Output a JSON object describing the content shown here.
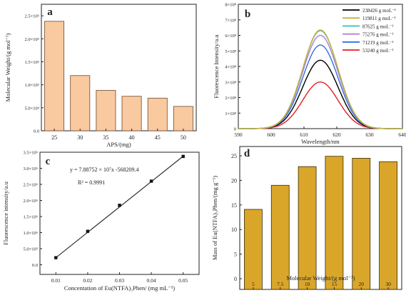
{
  "colors": {
    "bar_a": "#f9c9a0",
    "bar_d": "#d9a62a",
    "axis": "#222222",
    "fit_line": "#333333",
    "points": "#111111"
  },
  "chart_data": [
    {
      "panel": "a",
      "type": "bar",
      "label": "a",
      "categories": [
        "25",
        "30",
        "35",
        "40",
        "45",
        "50"
      ],
      "values": [
        238000,
        120000,
        88000,
        75000,
        71000,
        53000
      ],
      "ylim": [
        0,
        275000
      ],
      "yticks": [
        0,
        50000,
        100000,
        150000,
        200000,
        250000
      ],
      "ytick_labels": [
        "0.0",
        "5.0×10⁴",
        "1.0×10⁵",
        "1.5×10⁵",
        "2.0×10⁵",
        "2.5×10⁵"
      ],
      "xlabel": "APS/(mg)",
      "ylabel": "Molecular Weight/(g mol⁻¹)"
    },
    {
      "panel": "b",
      "type": "line",
      "label": "b",
      "xlim": [
        590,
        640
      ],
      "xticks": [
        590,
        600,
        610,
        620,
        630,
        640
      ],
      "ylim": [
        0,
        800000000
      ],
      "yticks": [
        0,
        100000000,
        200000000,
        300000000,
        400000000,
        500000000,
        600000000,
        700000000,
        800000000
      ],
      "ytick_labels": [
        "0",
        "1×10⁸",
        "2×10⁸",
        "3×10⁸",
        "4×10⁸",
        "5×10⁸",
        "6×10⁸",
        "7×10⁸",
        "8×10⁸"
      ],
      "xlabel": "Wavelength/nm",
      "ylabel": "Fluorescence Intensity/a.u",
      "legend_position": "top-right",
      "peak_wavelength": 615,
      "series": [
        {
          "name": "238426 g moL⁻¹",
          "peak": 440000000,
          "color": "#000000"
        },
        {
          "name": "119811 g moL⁻¹",
          "peak": 635000000,
          "color": "#c8b43a"
        },
        {
          "name": "87625 g moL⁻¹",
          "peak": 630000000,
          "color": "#2ec4c4"
        },
        {
          "name": "75276 g moL⁻¹",
          "peak": 600000000,
          "color": "#b07ad0"
        },
        {
          "name": "71219 g moL⁻¹",
          "peak": 538000000,
          "color": "#2f6fe0"
        },
        {
          "name": "53240 g moL⁻¹",
          "peak": 300000000,
          "color": "#e02020"
        }
      ]
    },
    {
      "panel": "c",
      "type": "scatter",
      "label": "c",
      "x": [
        0.01,
        0.02,
        0.03,
        0.04,
        0.05
      ],
      "y": [
        220000,
        1040000,
        1850000,
        2600000,
        3370000
      ],
      "fit": {
        "slope": 78875200,
        "intercept": -568209.4
      },
      "equation": "y = 7.88752 × 10⁷x -568209.4",
      "r2": "R² = 0.9991",
      "xlim": [
        0.005,
        0.055
      ],
      "xticks": [
        0.01,
        0.02,
        0.03,
        0.04,
        0.05
      ],
      "xtick_labels": [
        "0.01",
        "0.02",
        "0.03",
        "0.04",
        "0.05"
      ],
      "ylim": [
        -300000,
        3500000
      ],
      "yticks": [
        0,
        500000,
        1000000,
        1500000,
        2000000,
        2500000,
        3000000,
        3500000
      ],
      "ytick_labels": [
        "0.0",
        "5.0×10⁵",
        "1.0×10⁶",
        "1.5×10⁶",
        "2.0×10⁶",
        "2.5×10⁶",
        "3.0×10⁶",
        "3.5×10⁶"
      ],
      "xlabel": "Concentation of Eu(NTFA)₃Phen/ (mg mL⁻¹)",
      "ylabel": "Fluorescence intensity/a.u"
    },
    {
      "panel": "d",
      "type": "bar",
      "label": "d",
      "categories": [
        "5",
        "7.5",
        "10",
        "15",
        "20",
        "30"
      ],
      "values": [
        14.1,
        19.0,
        22.8,
        24.9,
        24.5,
        23.8
      ],
      "ylim": [
        0,
        25
      ],
      "yticks": [
        0,
        5,
        10,
        15,
        20,
        25
      ],
      "ytick_labels": [
        "0",
        "5",
        "10",
        "15",
        "20",
        "25"
      ],
      "xlabel": "Molecular Weight/(g mol⁻¹)",
      "ylabel": "Mass of Eu(NTFA)₃Phen/(mg g⁻¹)"
    }
  ]
}
